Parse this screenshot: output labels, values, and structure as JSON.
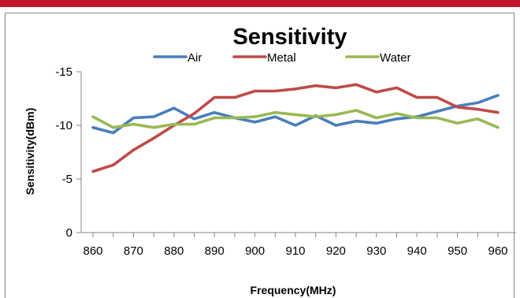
{
  "colors": {
    "top_bar": "#c0182a",
    "Air": "#4a7ebb",
    "Metal": "#be4b48",
    "Water": "#98b954",
    "axis": "#868686",
    "frame": "#868686"
  },
  "chart_data": {
    "type": "line",
    "title": "Sensitivity",
    "xlabel": "Frequency(MHz)",
    "ylabel": "Sensitivity(dBm)",
    "x": [
      860,
      865,
      870,
      875,
      880,
      885,
      890,
      895,
      900,
      905,
      910,
      915,
      920,
      925,
      930,
      935,
      940,
      945,
      950,
      955,
      960
    ],
    "x_tick_values": [
      860,
      870,
      880,
      890,
      900,
      910,
      920,
      930,
      940,
      950,
      960
    ],
    "x_tick_labels": [
      "860",
      "870",
      "880",
      "890",
      "900",
      "910",
      "920",
      "930",
      "940",
      "950",
      "960"
    ],
    "y_reversed": true,
    "ylim": [
      0,
      -15
    ],
    "y_tick_values": [
      -15,
      -10,
      -5,
      0
    ],
    "y_tick_labels": [
      "-15",
      "-10",
      "-5",
      "0"
    ],
    "grid": false,
    "legend_position": "top-center",
    "series": [
      {
        "name": "Air",
        "values": [
          -9.8,
          -9.3,
          -10.7,
          -10.8,
          -11.6,
          -10.6,
          -11.2,
          -10.7,
          -10.3,
          -10.8,
          -10.0,
          -10.9,
          -10.0,
          -10.4,
          -10.2,
          -10.6,
          -10.8,
          -11.3,
          -11.8,
          -12.1,
          -12.8
        ]
      },
      {
        "name": "Metal",
        "values": [
          -5.7,
          -6.3,
          -7.7,
          -8.8,
          -10.0,
          -11.1,
          -12.6,
          -12.6,
          -13.2,
          -13.2,
          -13.4,
          -13.7,
          -13.5,
          -13.8,
          -13.1,
          -13.5,
          -12.6,
          -12.6,
          -11.7,
          -11.5,
          -11.2
        ]
      },
      {
        "name": "Water",
        "values": [
          -10.8,
          -9.8,
          -10.1,
          -9.8,
          -10.1,
          -10.1,
          -10.7,
          -10.7,
          -10.8,
          -11.2,
          -11.0,
          -10.8,
          -11.0,
          -11.4,
          -10.7,
          -11.1,
          -10.7,
          -10.7,
          -10.2,
          -10.6,
          -9.8
        ]
      }
    ]
  }
}
